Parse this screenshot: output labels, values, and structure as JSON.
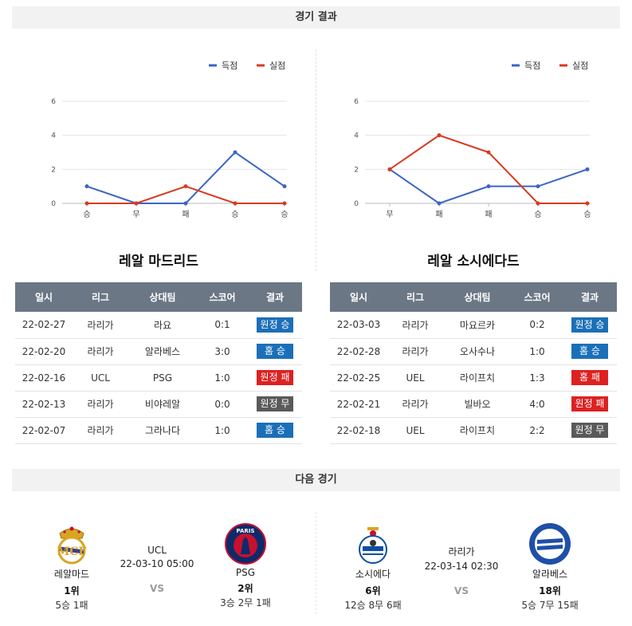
{
  "results_header": "경기 결과",
  "next_header": "다음 경기",
  "charts": [
    {
      "chart_data": {
        "type": "line",
        "categories": [
          "승",
          "무",
          "패",
          "승",
          "승"
        ],
        "series": [
          {
            "name": "득점",
            "values": [
              1,
              0,
              0,
              3,
              1
            ],
            "color": "#3a64c8"
          },
          {
            "name": "실점",
            "values": [
              0,
              0,
              1,
              0,
              0
            ],
            "color": "#d93a1f"
          }
        ],
        "ylim": [
          0,
          6
        ],
        "yticks": [
          "0",
          "2",
          "4",
          "6"
        ],
        "grid": true,
        "legend": "top-right"
      }
    },
    {
      "chart_data": {
        "type": "line",
        "categories": [
          "무",
          "패",
          "패",
          "승",
          "승"
        ],
        "series": [
          {
            "name": "득점",
            "values": [
              2,
              0,
              1,
              1,
              2
            ],
            "color": "#3a64c8"
          },
          {
            "name": "실점",
            "values": [
              2,
              4,
              3,
              0,
              0
            ],
            "color": "#d93a1f"
          }
        ],
        "ylim": [
          0,
          6
        ],
        "yticks": [
          "0",
          "2",
          "4",
          "6"
        ],
        "grid": true,
        "legend": "top-right"
      }
    }
  ],
  "teams": [
    {
      "title": "레알 마드리드",
      "columns": [
        "일시",
        "리그",
        "상대팀",
        "스코어",
        "결과"
      ],
      "rows": [
        {
          "date": "22-02-27",
          "league": "라리가",
          "opponent": "라요",
          "score": "0:1",
          "result": "원정 승",
          "type": "win"
        },
        {
          "date": "22-02-20",
          "league": "라리가",
          "opponent": "알라베스",
          "score": "3:0",
          "result": "홈 승",
          "type": "win"
        },
        {
          "date": "22-02-16",
          "league": "UCL",
          "opponent": "PSG",
          "score": "1:0",
          "result": "원정 패",
          "type": "lose"
        },
        {
          "date": "22-02-13",
          "league": "라리가",
          "opponent": "비야레알",
          "score": "0:0",
          "result": "원정 무",
          "type": "draw"
        },
        {
          "date": "22-02-07",
          "league": "라리가",
          "opponent": "그라나다",
          "score": "1:0",
          "result": "홈 승",
          "type": "win"
        }
      ]
    },
    {
      "title": "레알 소시에다드",
      "columns": [
        "일시",
        "리그",
        "상대팀",
        "스코어",
        "결과"
      ],
      "rows": [
        {
          "date": "22-03-03",
          "league": "라리가",
          "opponent": "마요르카",
          "score": "0:2",
          "result": "원정 승",
          "type": "win"
        },
        {
          "date": "22-02-28",
          "league": "라리가",
          "opponent": "오사수나",
          "score": "1:0",
          "result": "홈 승",
          "type": "win"
        },
        {
          "date": "22-02-25",
          "league": "UEL",
          "opponent": "라이프치",
          "score": "1:3",
          "result": "홈 패",
          "type": "lose"
        },
        {
          "date": "22-02-21",
          "league": "라리가",
          "opponent": "빌바오",
          "score": "4:0",
          "result": "원정 패",
          "type": "lose"
        },
        {
          "date": "22-02-18",
          "league": "UEL",
          "opponent": "라이프치",
          "score": "2:2",
          "result": "원정 무",
          "type": "draw"
        }
      ]
    }
  ],
  "next_matches": [
    {
      "home": {
        "name": "레알마드",
        "rank": "1위",
        "record": "5승 1패",
        "logo": "real-madrid-crest"
      },
      "league": "UCL",
      "datetime": "22-03-10 05:00",
      "vs": "VS",
      "away": {
        "name": "PSG",
        "rank": "2위",
        "record": "3승 2무 1패",
        "logo": "psg-crest"
      }
    },
    {
      "home": {
        "name": "소시에다",
        "rank": "6위",
        "record": "12승 8무 6패",
        "logo": "real-sociedad-crest"
      },
      "league": "라리가",
      "datetime": "22-03-14 02:30",
      "vs": "VS",
      "away": {
        "name": "알라베스",
        "rank": "18위",
        "record": "5승 7무 15패",
        "logo": "alaves-crest"
      }
    }
  ]
}
